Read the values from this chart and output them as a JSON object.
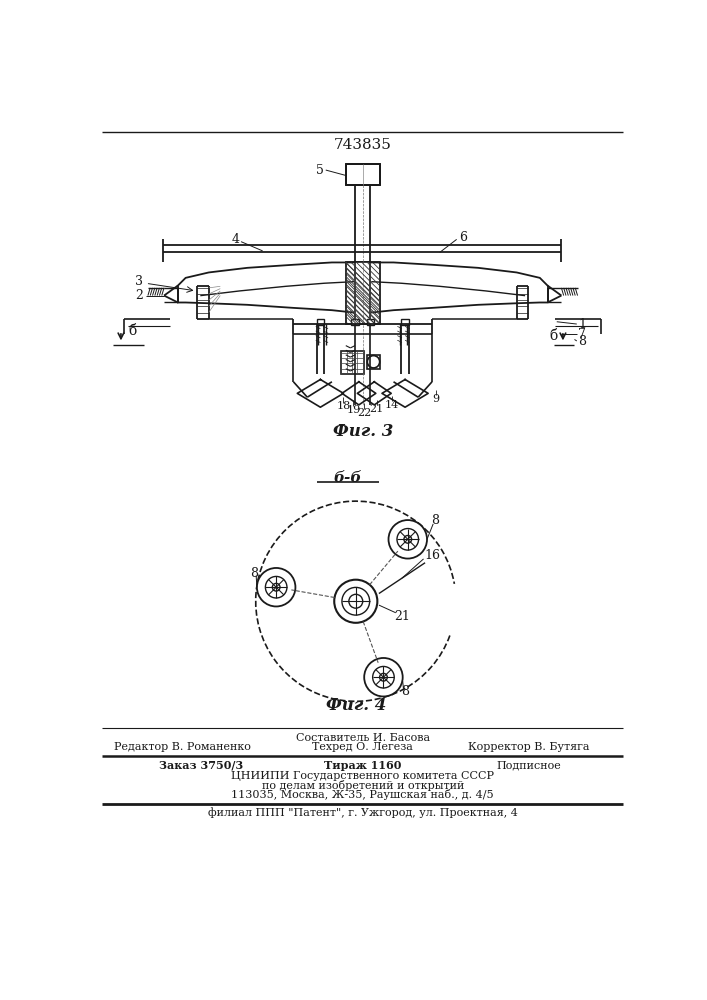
{
  "patent_number": "743835",
  "fig3_label": "Фиг. 3",
  "fig4_label": "Фиг. 4",
  "section_label": "б-б",
  "bg_color": "#ffffff",
  "line_color": "#1a1a1a",
  "footer_composer": "Составитель И. Басова",
  "footer_editor": "Редактор В. Романенко",
  "footer_techred": "Техред О. Легеза",
  "footer_corrector": "Корректор В. Бутяга",
  "footer_order": "Заказ 3750/3",
  "footer_circulation": "Тираж 1160",
  "footer_signed": "Подписное",
  "footer_org1": "ЦНИИПИ Государственного комитета СССР",
  "footer_org2": "по делам изобретений и открытий",
  "footer_address": "113035, Москва, Ж-35, Раушская наб., д. 4/5",
  "footer_branch": "филиал ППП \"Патент\", г. Ужгород, ул. Проектная, 4"
}
